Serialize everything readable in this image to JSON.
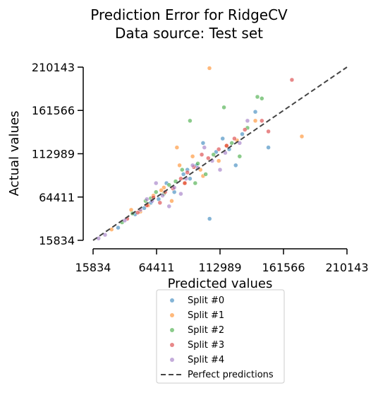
{
  "chart_data": {
    "type": "scatter",
    "title": "Prediction Error for RidgeCV",
    "subtitle": "Data source: Test set",
    "x_label": "Predicted values",
    "y_label": "Actual values",
    "xlim": [
      15834,
      210143
    ],
    "ylim": [
      15834,
      210143
    ],
    "xticks": [
      15834,
      64411,
      112989,
      161566,
      210143
    ],
    "yticks": [
      15834,
      64411,
      112989,
      161566,
      210143
    ],
    "series": [
      {
        "name": "Split #0",
        "color": "#1f77b4",
        "x": [
          60000,
          72000,
          85000,
          95000,
          110000,
          120000,
          130000,
          140000,
          105000,
          100000,
          78000,
          66000,
          55000,
          90000,
          115000,
          48000,
          35000,
          150000,
          125000,
          88000
        ],
        "values": [
          58000,
          80000,
          90000,
          100000,
          115000,
          118000,
          135000,
          160000,
          40000,
          125000,
          70000,
          62000,
          52000,
          85000,
          130000,
          45000,
          30000,
          120000,
          100000,
          95000
        ]
      },
      {
        "name": "Split #1",
        "color": "#ff7f0e",
        "x": [
          104900,
          175600,
          62000,
          70000,
          82000,
          98000,
          112000,
          58000,
          45000,
          92000,
          126000,
          76000,
          86000,
          68000,
          140000,
          30000,
          52000,
          118000,
          100000,
          80000
        ],
        "values": [
          209000,
          132400,
          66000,
          75000,
          100000,
          95000,
          105000,
          55000,
          50000,
          110000,
          128000,
          60000,
          80000,
          72000,
          150000,
          28000,
          48000,
          122000,
          88000,
          120000
        ]
      },
      {
        "name": "Split #2",
        "color": "#2ca02c",
        "x": [
          141600,
          64000,
          74000,
          84000,
          96000,
          108000,
          122000,
          134000,
          56000,
          46000,
          90000,
          102000,
          116000,
          79000,
          145000,
          38000,
          70000,
          128000,
          94000,
          60000
        ],
        "values": [
          176800,
          70000,
          78000,
          95000,
          102000,
          112000,
          125000,
          142000,
          60000,
          46000,
          150000,
          90000,
          165000,
          82000,
          175000,
          36000,
          68000,
          110000,
          80000,
          63000
        ]
      },
      {
        "name": "Split #3",
        "color": "#d62728",
        "x": [
          168000,
          62000,
          71000,
          83000,
          93000,
          104000,
          118000,
          132000,
          57000,
          50000,
          88000,
          99000,
          112000,
          77000,
          145000,
          42000,
          67000,
          124000,
          86000,
          150000
        ],
        "values": [
          195900,
          64000,
          70000,
          85000,
          98000,
          108000,
          122000,
          140000,
          55000,
          47000,
          92000,
          112000,
          118000,
          74000,
          150000,
          40000,
          58000,
          130000,
          80000,
          138000
        ]
      },
      {
        "name": "Split #4",
        "color": "#9467bd",
        "x": [
          20000,
          25000,
          40000,
          52000,
          61000,
          69000,
          78000,
          87000,
          96000,
          107000,
          117000,
          128000,
          74000,
          83000,
          92000,
          113000,
          64000,
          101000,
          134000,
          57000
        ],
        "values": [
          18000,
          22000,
          38000,
          50000,
          60000,
          66000,
          75000,
          85000,
          97000,
          105000,
          114000,
          125000,
          54000,
          68000,
          100000,
          95000,
          80000,
          120000,
          150000,
          62000
        ]
      }
    ],
    "reference_line": {
      "name": "Perfect predictions",
      "color": "#444444"
    }
  }
}
